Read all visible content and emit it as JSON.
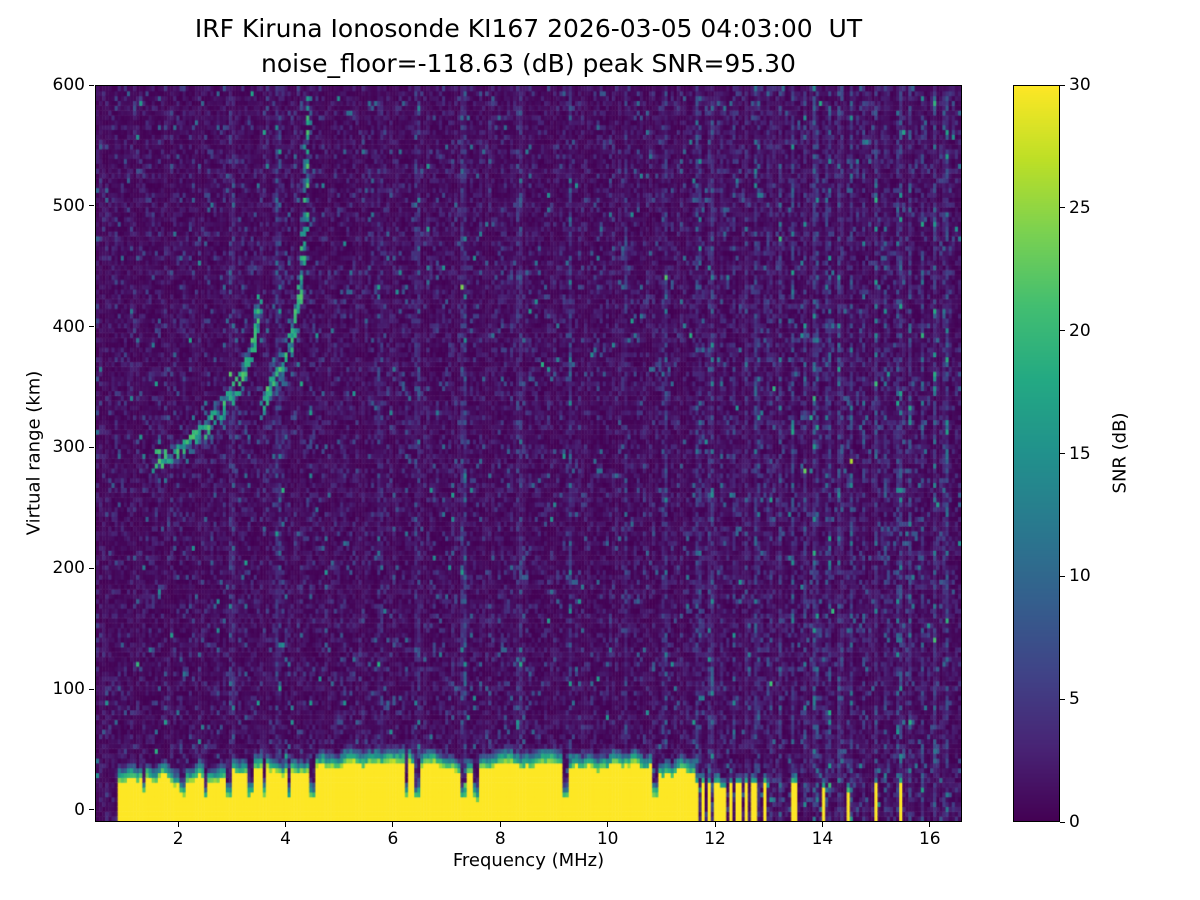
{
  "chart_data": {
    "type": "heatmap",
    "title": "IRF Kiruna Ionosonde KI167 2026-03-05 04:03:00  UT",
    "subtitle": "noise_floor=-118.63 (dB) peak SNR=95.30",
    "xlabel": "Frequency (MHz)",
    "ylabel": "Virtual range (km)",
    "colorbar_label": "SNR (dB)",
    "colormap": "viridis",
    "station": "KI167",
    "timestamp_ut": "2026-03-05 04:03:00",
    "noise_floor_db": -118.63,
    "peak_snr_db": 95.3,
    "xlim": [
      0.45,
      16.6
    ],
    "ylim": [
      -10,
      600
    ],
    "clim": [
      0,
      30
    ],
    "xticks": [
      2,
      4,
      6,
      8,
      10,
      12,
      14,
      16
    ],
    "yticks": [
      0,
      100,
      200,
      300,
      400,
      500,
      600
    ],
    "colorbar_ticks": [
      0,
      5,
      10,
      15,
      20,
      25,
      30
    ],
    "features": {
      "ground_return": {
        "freq_range_mhz": [
          0.88,
          11.62
        ],
        "top_km_mean": 28,
        "snr_db": 30
      },
      "ground_notches_mhz": [
        1.35,
        2.05,
        2.5,
        2.95,
        3.35,
        3.6,
        4.05,
        4.5,
        6.25,
        6.45,
        7.3,
        7.55,
        9.2,
        10.9
      ],
      "tx_stripes_mhz": [
        11.66,
        11.78,
        11.9,
        12.03,
        12.16,
        12.3,
        12.44,
        12.58,
        12.73,
        12.95,
        13.5,
        14.04,
        14.5,
        15.02,
        15.48
      ],
      "rfi_stripes_mhz": [
        3.0,
        3.85,
        5.75,
        6.45,
        7.3,
        8.35,
        9.3,
        10.35,
        11.05,
        11.7,
        11.92,
        12.14,
        12.36,
        12.58,
        12.8,
        13.02,
        13.24,
        13.46,
        13.68,
        13.9,
        14.12,
        14.34,
        14.56,
        14.78,
        15.0,
        15.22,
        15.44,
        15.66,
        15.88,
        16.1,
        16.32
      ],
      "echo_trace_o_mode_mhz_km": [
        [
          1.55,
          288
        ],
        [
          1.75,
          292
        ],
        [
          1.95,
          297
        ],
        [
          2.15,
          303
        ],
        [
          2.35,
          310
        ],
        [
          2.55,
          318
        ],
        [
          2.75,
          328
        ],
        [
          2.95,
          340
        ],
        [
          3.1,
          352
        ],
        [
          3.25,
          365
        ],
        [
          3.35,
          380
        ],
        [
          3.45,
          400
        ],
        [
          3.5,
          425
        ]
      ],
      "echo_trace_x_mode_mhz_km": [
        [
          3.55,
          335
        ],
        [
          3.7,
          348
        ],
        [
          3.85,
          360
        ],
        [
          4.0,
          375
        ],
        [
          4.12,
          395
        ],
        [
          4.22,
          418
        ],
        [
          4.3,
          445
        ],
        [
          4.35,
          480
        ],
        [
          4.38,
          520
        ],
        [
          4.4,
          555
        ],
        [
          4.42,
          590
        ]
      ]
    }
  }
}
